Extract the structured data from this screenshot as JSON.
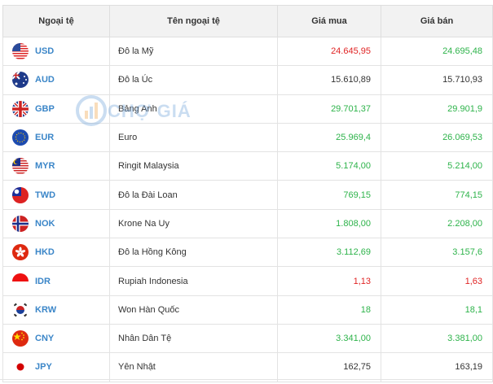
{
  "headers": {
    "code": "Ngoại tệ",
    "name": "Tên ngoại tệ",
    "buy": "Giá mua",
    "sell": "Giá bán"
  },
  "watermark": "CHỢ GIÁ",
  "rows": [
    {
      "code": "USD",
      "name": "Đô la Mỹ",
      "buy": "24.645,95",
      "sell": "24.695,48",
      "buy_color": "red",
      "sell_color": "green",
      "flag": "us-flag-icon"
    },
    {
      "code": "AUD",
      "name": "Đô la Úc",
      "buy": "15.610,89",
      "sell": "15.710,93",
      "buy_color": "black",
      "sell_color": "black",
      "flag": "au-flag-icon"
    },
    {
      "code": "GBP",
      "name": "Bảng Anh",
      "buy": "29.701,37",
      "sell": "29.901,9",
      "buy_color": "green",
      "sell_color": "green",
      "flag": "gb-flag-icon"
    },
    {
      "code": "EUR",
      "name": "Euro",
      "buy": "25.969,4",
      "sell": "26.069,53",
      "buy_color": "green",
      "sell_color": "green",
      "flag": "eu-flag-icon"
    },
    {
      "code": "MYR",
      "name": "Ringit Malaysia",
      "buy": "5.174,00",
      "sell": "5.214,00",
      "buy_color": "green",
      "sell_color": "green",
      "flag": "my-flag-icon"
    },
    {
      "code": "TWD",
      "name": "Đô la Đài Loan",
      "buy": "769,15",
      "sell": "774,15",
      "buy_color": "green",
      "sell_color": "green",
      "flag": "tw-flag-icon"
    },
    {
      "code": "NOK",
      "name": "Krone Na Uy",
      "buy": "1.808,00",
      "sell": "2.208,00",
      "buy_color": "green",
      "sell_color": "green",
      "flag": "no-flag-icon"
    },
    {
      "code": "HKD",
      "name": "Đô la Hồng Kông",
      "buy": "3.112,69",
      "sell": "3.157,6",
      "buy_color": "green",
      "sell_color": "green",
      "flag": "hk-flag-icon"
    },
    {
      "code": "IDR",
      "name": "Rupiah Indonesia",
      "buy": "1,13",
      "sell": "1,63",
      "buy_color": "red",
      "sell_color": "red",
      "flag": "id-flag-icon"
    },
    {
      "code": "KRW",
      "name": "Won Hàn Quốc",
      "buy": "18",
      "sell": "18,1",
      "buy_color": "green",
      "sell_color": "green",
      "flag": "kr-flag-icon"
    },
    {
      "code": "CNY",
      "name": "Nhân Dân Tệ",
      "buy": "3.341,00",
      "sell": "3.381,00",
      "buy_color": "green",
      "sell_color": "green",
      "flag": "cn-flag-icon"
    },
    {
      "code": "JPY",
      "name": "Yên Nhật",
      "buy": "162,75",
      "sell": "163,19",
      "buy_color": "black",
      "sell_color": "black",
      "flag": "jp-flag-icon"
    }
  ],
  "colors": {
    "green": "#2db34a",
    "red": "#e02424",
    "black": "#333333",
    "code": "#3b86c8",
    "header_bg": "#f2f2f2"
  }
}
